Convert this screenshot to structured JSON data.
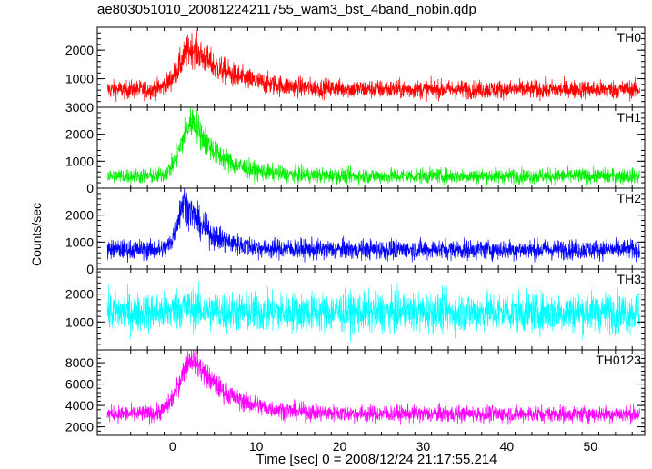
{
  "chart_data": {
    "type": "line",
    "title": "ae803051010_20081224211755_wam3_bst_4band_nobin.qdp",
    "xlabel": "Time [sec] 0 = 2008/12/24 21:17:55.214",
    "ylabel": "Counts/sec",
    "xlim": [
      -9,
      56.5
    ],
    "x_ticks": [
      0,
      10,
      20,
      30,
      40,
      50
    ],
    "grid": false,
    "panels": [
      {
        "name": "TH0",
        "color": "#ff0000",
        "ylim": [
          0,
          2800
        ],
        "y_ticks": [
          1000,
          2000
        ],
        "y_tick_labels": [
          "1000",
          "2000"
        ],
        "baseline": 620,
        "noise": 230,
        "pulse_peak": 1450,
        "pulse_time": 2.5,
        "rise": 1.6,
        "decay": 4.5
      },
      {
        "name": "TH1",
        "color": "#00ee00",
        "ylim": [
          0,
          3000
        ],
        "y_ticks": [
          0,
          1000,
          2000,
          3000
        ],
        "y_tick_labels": [
          "0",
          "1000",
          "2000",
          "3000"
        ],
        "baseline": 450,
        "noise": 200,
        "pulse_peak": 2050,
        "pulse_time": 2.5,
        "rise": 1.4,
        "decay": 3.2
      },
      {
        "name": "TH2",
        "color": "#0000ff",
        "ylim": [
          0,
          3000
        ],
        "y_ticks": [
          0,
          1000,
          2000
        ],
        "y_tick_labels": [
          "0",
          "1000",
          "2000"
        ],
        "baseline": 720,
        "noise": 260,
        "pulse_peak": 1800,
        "pulse_time": 1.5,
        "rise": 0.9,
        "decay": 2.8
      },
      {
        "name": "TH3",
        "color": "#00ffff",
        "ylim": [
          0,
          2900
        ],
        "y_ticks": [
          1000,
          2000
        ],
        "y_tick_labels": [
          "1000",
          "2000"
        ],
        "baseline": 1350,
        "noise": 500,
        "pulse_peak": 200,
        "pulse_time": 1.5,
        "rise": 1.0,
        "decay": 2.0
      },
      {
        "name": "TH0123",
        "color": "#ff00ff",
        "ylim": [
          1200,
          9200
        ],
        "y_ticks": [
          2000,
          4000,
          6000,
          8000
        ],
        "y_tick_labels": [
          "2000",
          "4000",
          "6000",
          "8000"
        ],
        "baseline": 3200,
        "noise": 560,
        "pulse_peak": 5300,
        "pulse_time": 2.5,
        "rise": 1.6,
        "decay": 4.0
      }
    ]
  }
}
